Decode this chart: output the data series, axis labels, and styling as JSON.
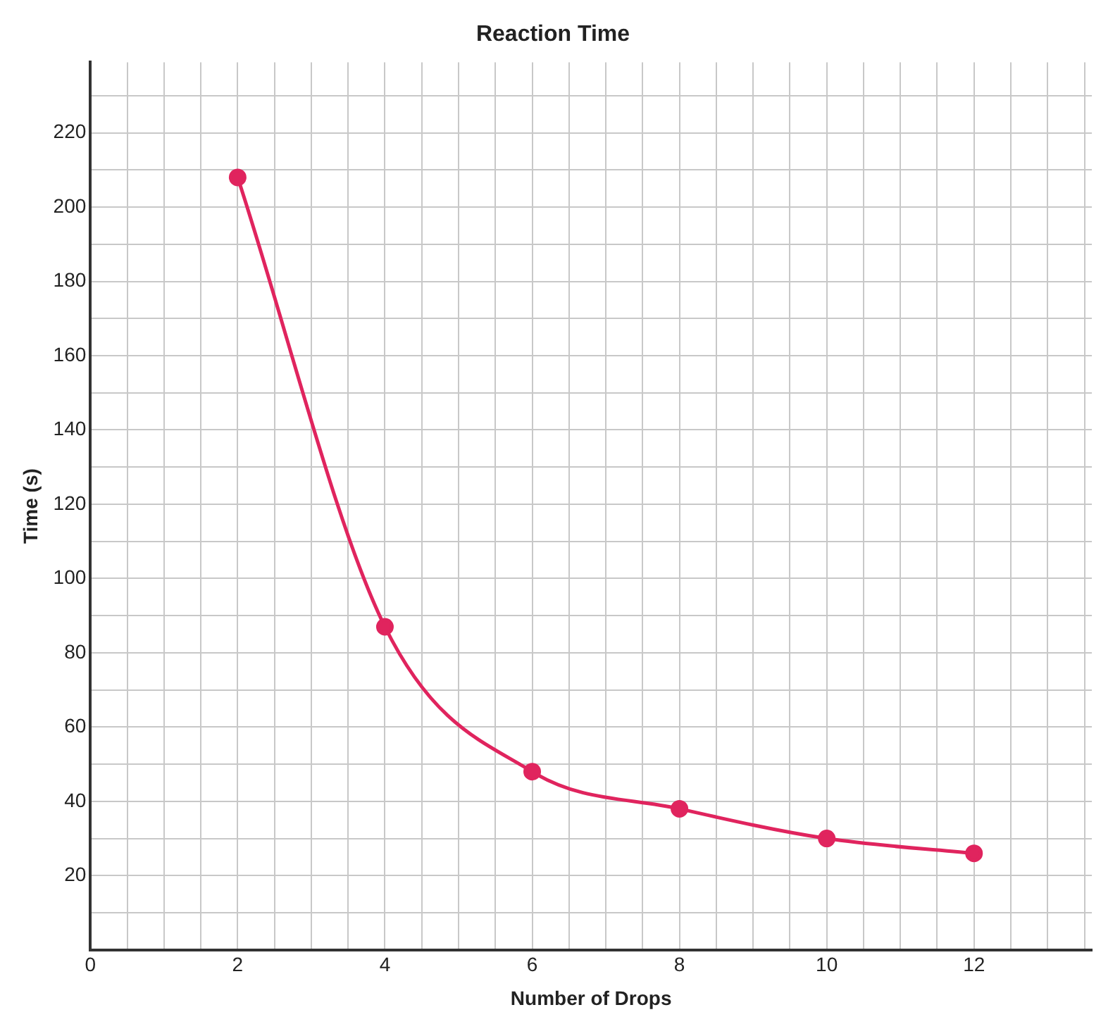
{
  "chart_data": {
    "type": "line",
    "title": "Reaction Time",
    "xlabel": "Number of Drops",
    "ylabel": "Time (s)",
    "series": [
      {
        "color": "#e0245e",
        "x": [
          2,
          4,
          6,
          8,
          10,
          12
        ],
        "values": [
          208,
          87,
          48,
          38,
          30,
          26
        ]
      }
    ],
    "xlim": [
      0,
      13.6
    ],
    "ylim": [
      0,
      239
    ],
    "xticks": [
      0,
      {
        "value": 0.5,
        "label": null
      },
      {
        "value": 1,
        "label": null
      },
      {
        "value": 1.5,
        "label": null
      },
      2,
      {
        "value": 2.5,
        "label": null
      },
      {
        "value": 3,
        "label": null
      },
      {
        "value": 3.5,
        "label": null
      },
      4,
      {
        "value": 4.5,
        "label": null
      },
      {
        "value": 5,
        "label": null
      },
      {
        "value": 5.5,
        "label": null
      },
      6,
      {
        "value": 6.5,
        "label": null
      },
      {
        "value": 7,
        "label": null
      },
      {
        "value": 7.5,
        "label": null
      },
      8,
      {
        "value": 8.5,
        "label": null
      },
      {
        "value": 9,
        "label": null
      },
      {
        "value": 9.5,
        "label": null
      },
      10,
      {
        "value": 10.5,
        "label": null
      },
      {
        "value": 11,
        "label": null
      },
      {
        "value": 11.5,
        "label": null
      },
      12,
      {
        "value": 12.5,
        "label": null
      },
      {
        "value": 13,
        "label": null
      },
      {
        "value": 13.5,
        "label": null
      }
    ],
    "yticks": [
      {
        "value": 0,
        "label": null
      },
      {
        "value": 10,
        "label": null
      },
      20,
      {
        "value": 30,
        "label": null
      },
      40,
      {
        "value": 50,
        "label": null
      },
      60,
      {
        "value": 70,
        "label": null
      },
      80,
      {
        "value": 90,
        "label": null
      },
      100,
      {
        "value": 110,
        "label": null
      },
      120,
      {
        "value": 130,
        "label": null
      },
      140,
      {
        "value": 150,
        "label": null
      },
      160,
      {
        "value": 170,
        "label": null
      },
      180,
      {
        "value": 190,
        "label": null
      },
      200,
      {
        "value": 210,
        "label": null
      },
      220,
      {
        "value": 230,
        "label": null
      }
    ],
    "grid": true,
    "legend": false,
    "marker": "circle",
    "line_style": "solid"
  }
}
